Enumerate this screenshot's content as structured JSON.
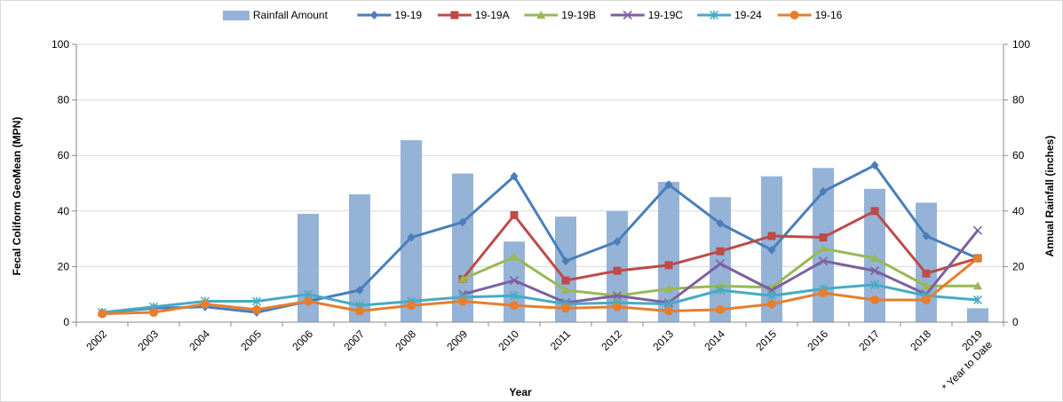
{
  "chart_data": {
    "type": "bar+line",
    "title": "",
    "xlabel": "Year",
    "ylabel": "Fecal Coliform GeoMean (MPN)",
    "y2label": "Annual Rainfall (inches)",
    "ylim": [
      0,
      100
    ],
    "y2lim": [
      0,
      100
    ],
    "yticks": [
      0,
      20,
      40,
      60,
      80,
      100
    ],
    "y2ticks": [
      0,
      20,
      40,
      60,
      80,
      100
    ],
    "grid": "horizontal",
    "legend_position": "top",
    "categories": [
      "2002",
      "2003",
      "2004",
      "2005",
      "2006",
      "2007",
      "2008",
      "2009",
      "2010",
      "2011",
      "2012",
      "2013",
      "2014",
      "2015",
      "2016",
      "2017",
      "2018",
      "2019"
    ],
    "last_category_note": "* Year to Date",
    "bar_series": {
      "name": "Rainfall Amount",
      "color": "#95B3D7",
      "values": [
        null,
        null,
        null,
        null,
        39,
        46,
        65.5,
        53.5,
        29,
        38,
        40,
        50.5,
        45,
        52.5,
        55.5,
        48,
        43,
        5
      ]
    },
    "series": [
      {
        "name": "19-19",
        "color": "#4A7EBB",
        "marker": "diamond",
        "values": [
          3.5,
          5,
          5.5,
          3.5,
          7.5,
          11.5,
          30.5,
          36,
          52.5,
          22,
          29,
          49.5,
          35.5,
          26,
          47,
          56.5,
          31,
          23
        ]
      },
      {
        "name": "19-19A",
        "color": "#BE4B48",
        "marker": "square",
        "values": [
          null,
          null,
          null,
          null,
          null,
          null,
          null,
          15.5,
          38.5,
          15,
          18.5,
          20.5,
          25.5,
          31,
          30.5,
          40,
          17.5,
          23
        ]
      },
      {
        "name": "19-19B",
        "color": "#98B954",
        "marker": "triangle",
        "values": [
          null,
          null,
          null,
          null,
          null,
          null,
          null,
          15.5,
          23.5,
          11.5,
          9.5,
          12,
          13,
          12.5,
          26.5,
          23,
          13,
          13
        ]
      },
      {
        "name": "19-19C",
        "color": "#7D60A0",
        "marker": "x",
        "values": [
          null,
          null,
          null,
          null,
          null,
          null,
          null,
          10,
          15,
          7,
          9.5,
          7,
          21,
          11.5,
          22,
          18.5,
          10,
          33
        ]
      },
      {
        "name": "19-24",
        "color": "#46AAC5",
        "marker": "star",
        "values": [
          3.5,
          5.5,
          7.5,
          7.5,
          10,
          6,
          7.5,
          9,
          9.5,
          6.5,
          7,
          6.5,
          11.5,
          9.5,
          12,
          13.5,
          9.5,
          8
        ]
      },
      {
        "name": "19-16",
        "color": "#E67E2E",
        "marker": "circle",
        "values": [
          3,
          3.5,
          6.5,
          4.5,
          7.5,
          4,
          6,
          7.5,
          6,
          5,
          5.5,
          4,
          4.5,
          6.5,
          10.5,
          8,
          8,
          23
        ]
      }
    ]
  }
}
